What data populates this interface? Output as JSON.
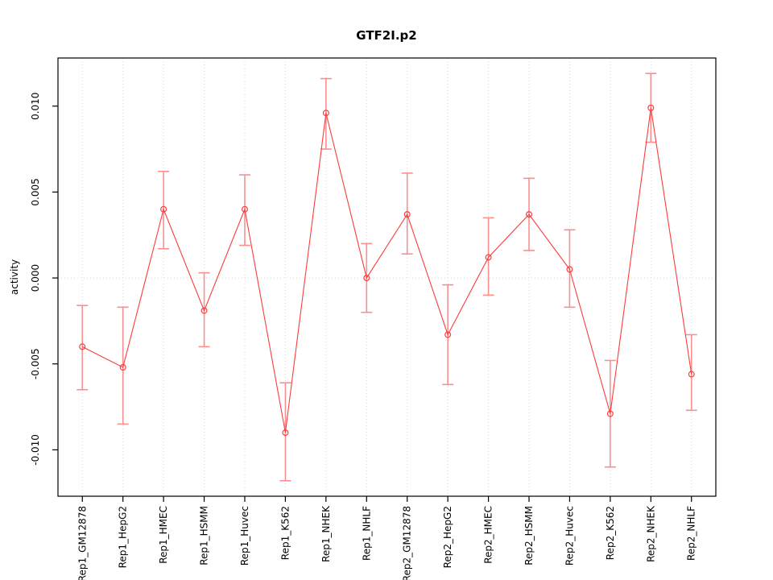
{
  "title": "GTF2I.p2",
  "chart_data": {
    "type": "line",
    "title": "GTF2I.p2",
    "xlabel": "",
    "ylabel": "activity",
    "legend": "none",
    "grid": "vertical dotted gridline at each category; dotted horizontal line at y=0",
    "point_style": "open circle with vertical error bars (whisker caps)",
    "categories": [
      "Rep1_GM12878",
      "Rep1_HepG2",
      "Rep1_HMEC",
      "Rep1_HSMM",
      "Rep1_Huvec",
      "Rep1_K562",
      "Rep1_NHEK",
      "Rep1_NHLF",
      "Rep2_GM12878",
      "Rep2_HepG2",
      "Rep2_HMEC",
      "Rep2_HSMM",
      "Rep2_Huvec",
      "Rep2_K562",
      "Rep2_NHEK",
      "Rep2_NHLF"
    ],
    "series": [
      {
        "name": "activity",
        "values": [
          -0.004,
          -0.0052,
          0.004,
          -0.0019,
          0.004,
          -0.009,
          0.0096,
          0.0,
          0.0037,
          -0.0033,
          0.0012,
          0.0037,
          0.0005,
          -0.0079,
          0.0099,
          -0.0056
        ],
        "error_upper": [
          -0.0016,
          -0.0017,
          0.0062,
          0.0003,
          0.006,
          -0.0061,
          0.0116,
          0.002,
          0.0061,
          -0.0004,
          0.0035,
          0.0058,
          0.0028,
          -0.0048,
          0.0119,
          -0.0033
        ],
        "error_lower": [
          -0.0065,
          -0.0085,
          0.0017,
          -0.004,
          0.0019,
          -0.0118,
          0.0075,
          -0.002,
          0.0014,
          -0.0062,
          -0.001,
          0.0016,
          -0.0017,
          -0.011,
          0.0079,
          -0.0077
        ]
      }
    ],
    "yticks": [
      -0.01,
      -0.005,
      0.0,
      0.005,
      0.01
    ],
    "ytick_labels": [
      "-0.010",
      "-0.005",
      "0.000",
      "0.005",
      "0.010"
    ],
    "ylim": [
      -0.0127,
      0.0128
    ],
    "xlim": [
      0.4,
      16.6
    ],
    "colors": {
      "line": "#fb3d3d",
      "point": "#fb3d3d",
      "error_bar": "#f98f8f",
      "grid": "#d9d9d9",
      "axis": "#000000",
      "text": "#000000",
      "background": "#ffffff"
    }
  }
}
